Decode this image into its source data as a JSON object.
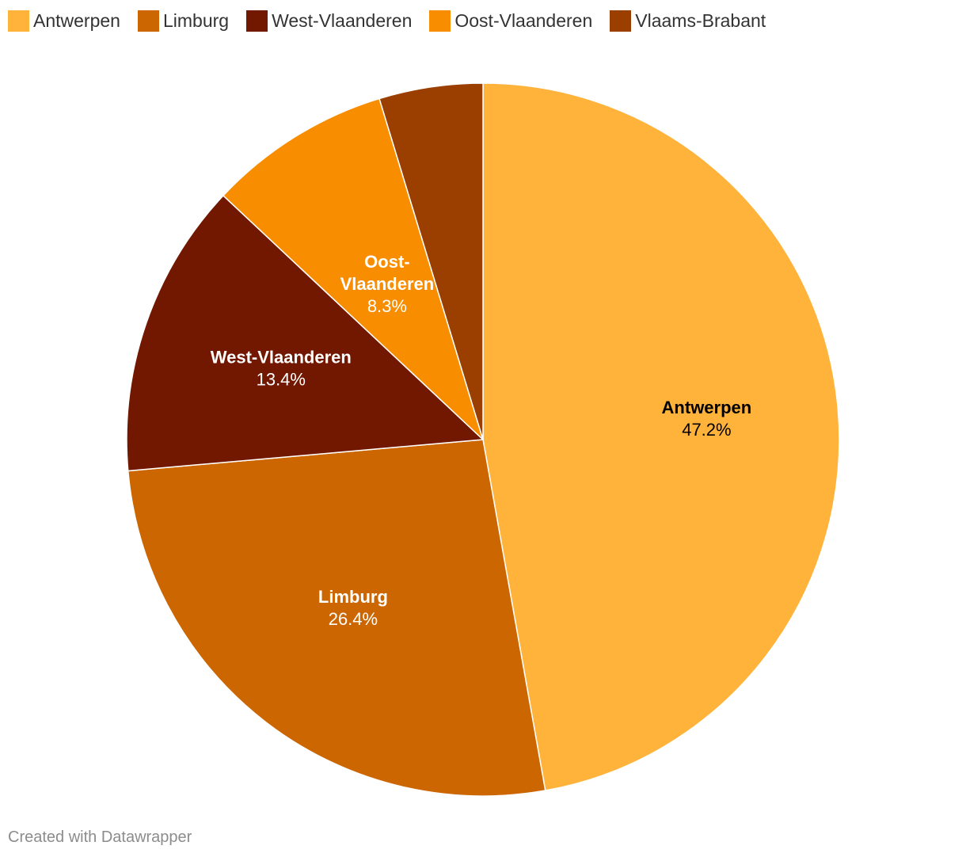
{
  "chart_data": {
    "type": "pie",
    "categories": [
      "Antwerpen",
      "Limburg",
      "West-Vlaanderen",
      "Oost-Vlaanderen",
      "Vlaams-Brabant"
    ],
    "values": [
      47.2,
      26.4,
      13.4,
      8.3,
      4.7
    ],
    "value_labels": [
      "47.2%",
      "26.4%",
      "13.4%",
      "8.3%",
      ""
    ],
    "colors": [
      "#ffb33b",
      "#cc6600",
      "#721800",
      "#f98d00",
      "#9b3f00"
    ],
    "label_colors": [
      "#000000",
      "#ffffff",
      "#ffffff",
      "#ffffff",
      "#ffffff"
    ],
    "legend_position": "top-left",
    "start_angle": "12 o'clock",
    "direction": "clockwise"
  },
  "legend": {
    "items": [
      {
        "label": "Antwerpen",
        "color": "#ffb33b"
      },
      {
        "label": "Limburg",
        "color": "#cc6600"
      },
      {
        "label": "West-Vlaanderen",
        "color": "#721800"
      },
      {
        "label": "Oost-Vlaanderen",
        "color": "#f98d00"
      },
      {
        "label": "Vlaams-Brabant",
        "color": "#9b3f00"
      }
    ]
  },
  "footer": {
    "credit": "Created with Datawrapper"
  }
}
